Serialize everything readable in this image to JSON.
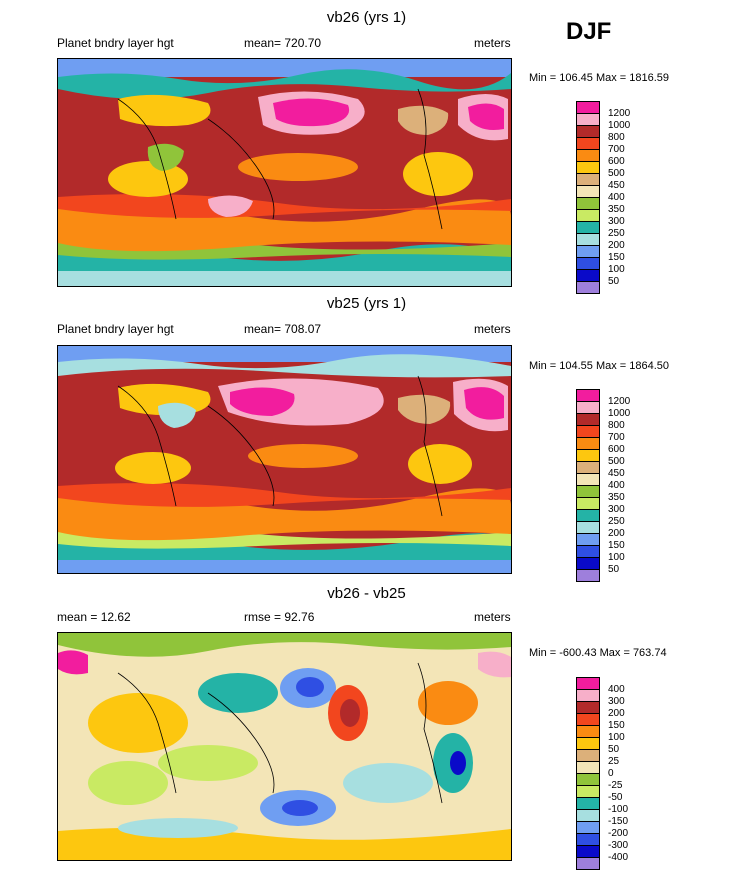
{
  "season": "DJF",
  "panels": [
    {
      "title": "vb26 (yrs 1)",
      "left_label": "Planet bndry layer hgt",
      "center_label": "mean= 720.70",
      "units": "meters",
      "minmax": "Min = 106.45 Max = 1816.59",
      "levels": [
        "1200",
        "1000",
        "800",
        "700",
        "600",
        "500",
        "450",
        "400",
        "350",
        "300",
        "250",
        "200",
        "150",
        "100",
        "50"
      ],
      "colors": [
        "#f21d9e",
        "#f7afc9",
        "#b22a2a",
        "#f2461e",
        "#fa8b12",
        "#fdc70f",
        "#dcb07a",
        "#f3e5b7",
        "#90c43a",
        "#c9ea63",
        "#24b3a6",
        "#a7dfe0",
        "#6f9ef2",
        "#2f4fe3",
        "#0a0ac9",
        "#9e7fdc"
      ]
    },
    {
      "title": "vb25 (yrs 1)",
      "left_label": "Planet bndry layer hgt",
      "center_label": "mean= 708.07",
      "units": "meters",
      "minmax": "Min = 104.55 Max = 1864.50",
      "levels": [
        "1200",
        "1000",
        "800",
        "700",
        "600",
        "500",
        "450",
        "400",
        "350",
        "300",
        "250",
        "200",
        "150",
        "100",
        "50"
      ],
      "colors": [
        "#f21d9e",
        "#f7afc9",
        "#b22a2a",
        "#f2461e",
        "#fa8b12",
        "#fdc70f",
        "#dcb07a",
        "#f3e5b7",
        "#90c43a",
        "#c9ea63",
        "#24b3a6",
        "#a7dfe0",
        "#6f9ef2",
        "#2f4fe3",
        "#0a0ac9",
        "#9e7fdc"
      ]
    },
    {
      "title": "vb26 - vb25",
      "left_label": "mean =  12.62",
      "center_label": "rmse =  92.76",
      "units": "meters",
      "minmax": "Min = -600.43 Max = 763.74",
      "levels": [
        "400",
        "300",
        "200",
        "150",
        "100",
        "50",
        "25",
        "0",
        "-25",
        "-50",
        "-100",
        "-150",
        "-200",
        "-300",
        "-400"
      ],
      "colors": [
        "#f21d9e",
        "#f7afc9",
        "#b22a2a",
        "#f2461e",
        "#fa8b12",
        "#fdc70f",
        "#dcb07a",
        "#f3e5b7",
        "#90c43a",
        "#c9ea63",
        "#24b3a6",
        "#a7dfe0",
        "#6f9ef2",
        "#2f4fe3",
        "#0a0ac9",
        "#9e7fdc"
      ]
    }
  ]
}
